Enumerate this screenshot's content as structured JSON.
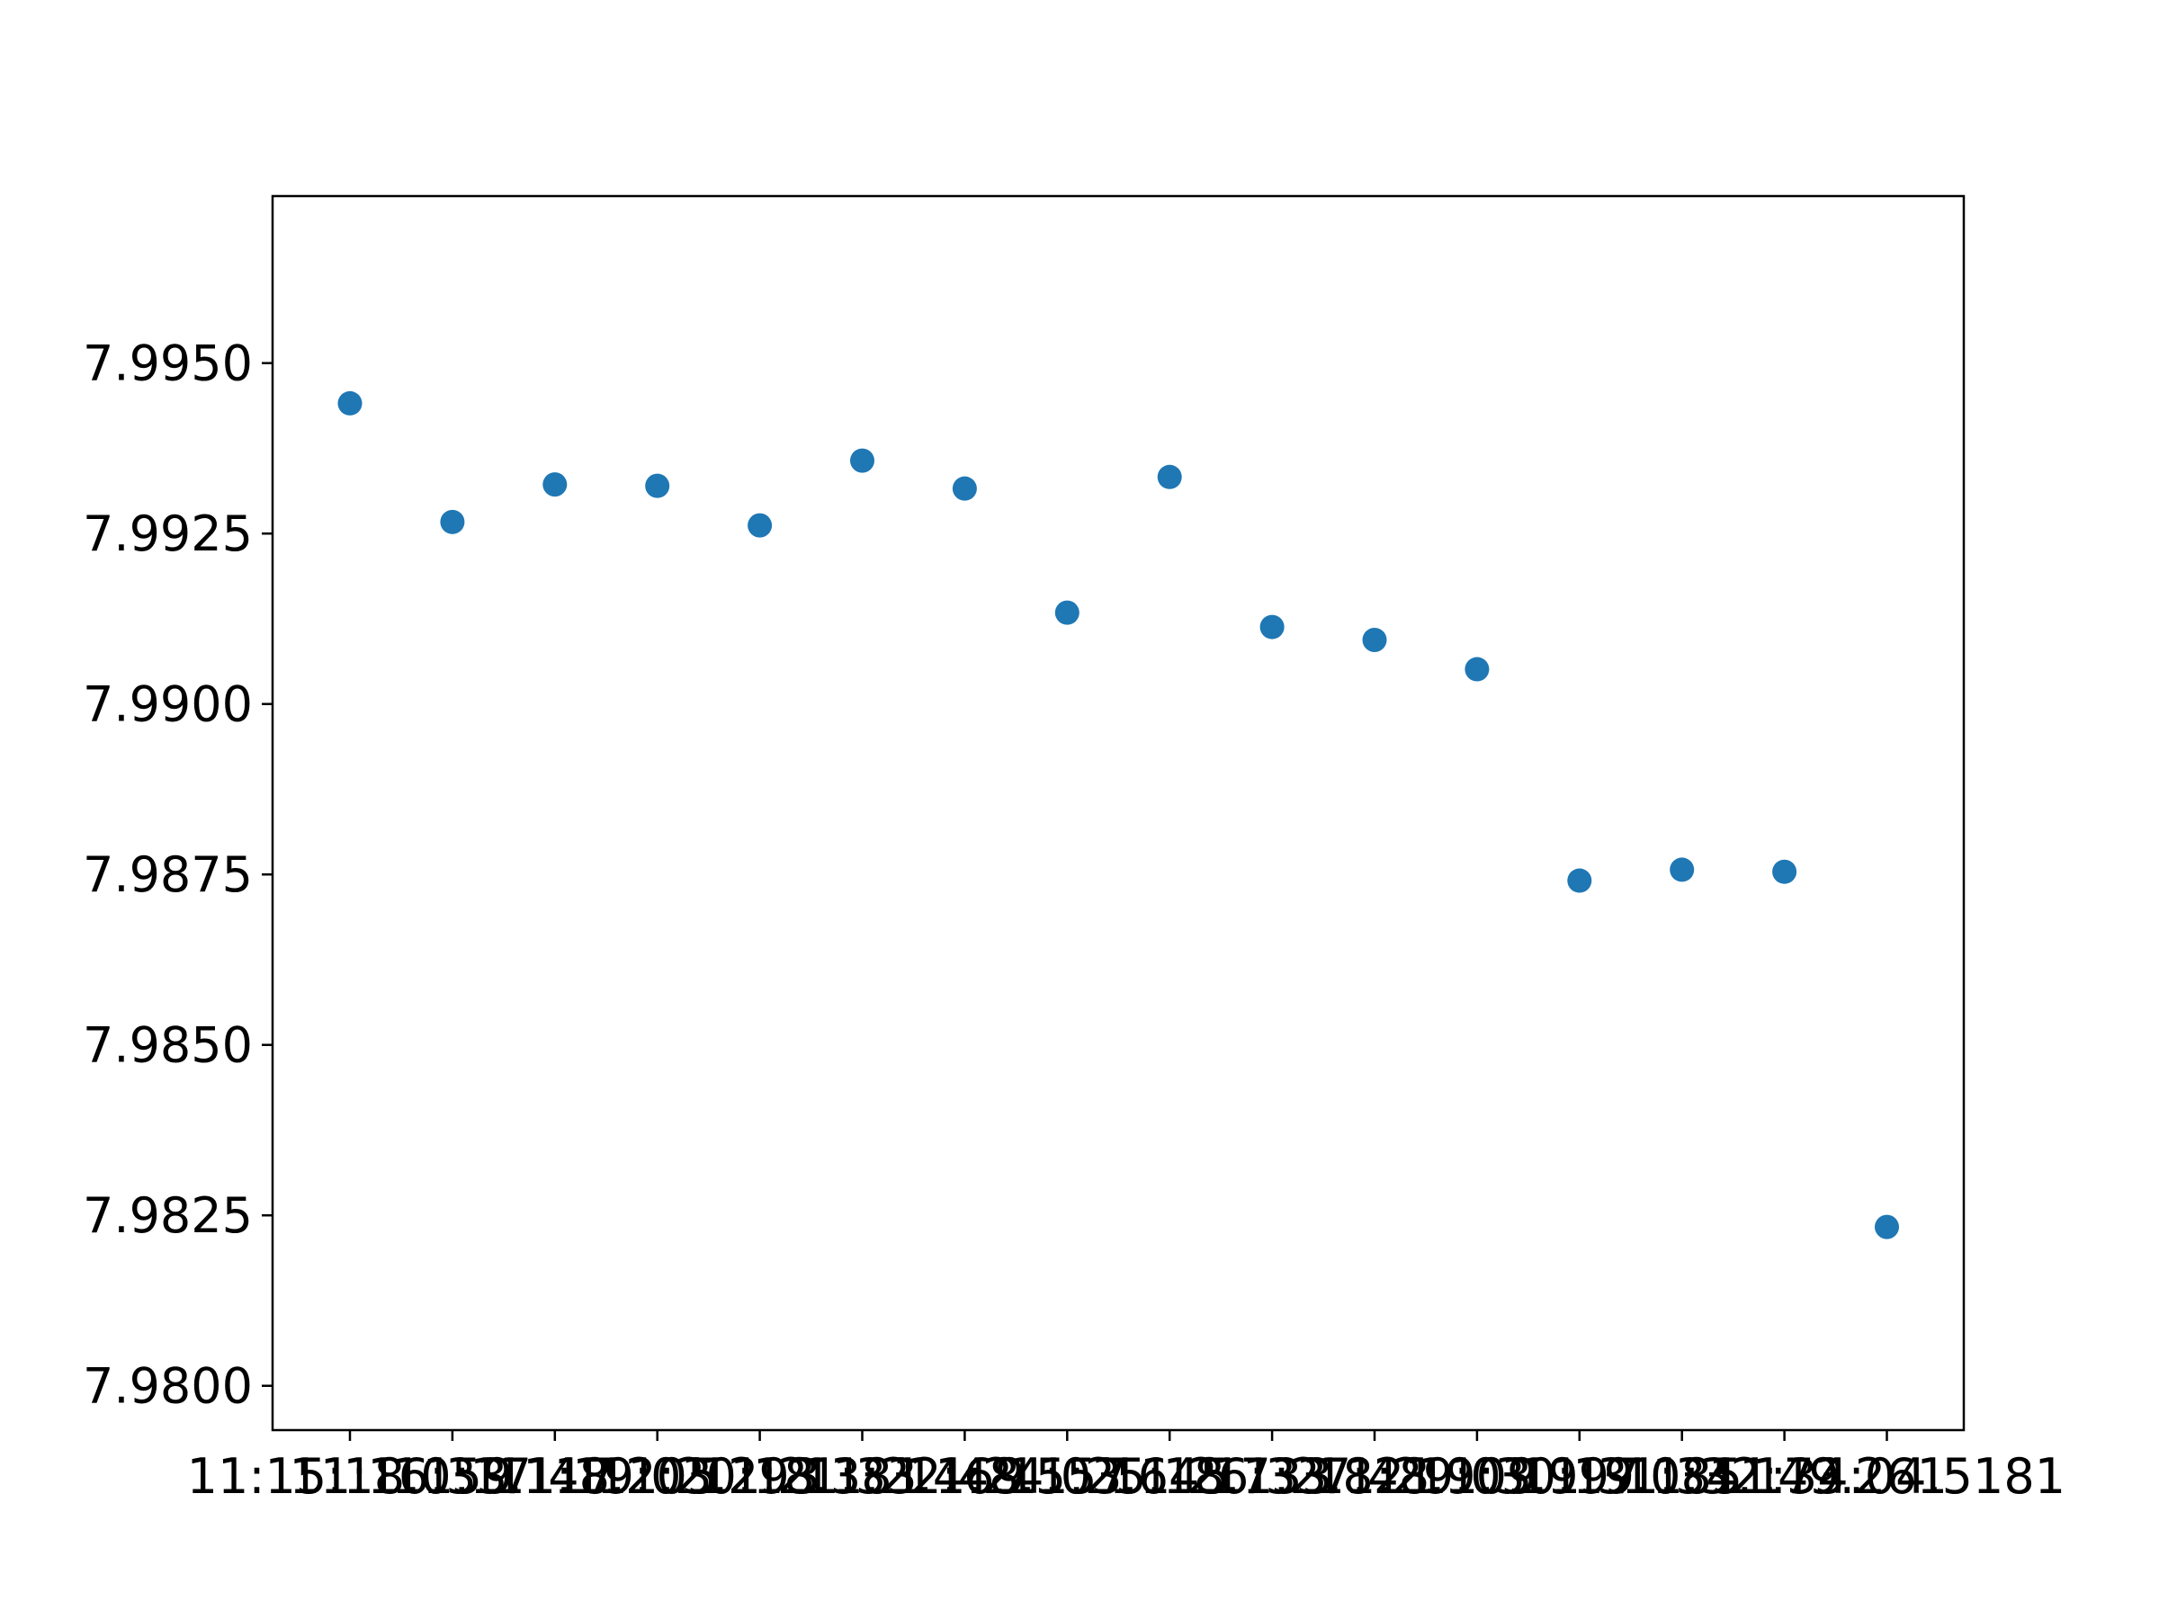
{
  "chart_data": {
    "type": "scatter",
    "title": "",
    "xlabel": "",
    "ylabel": "",
    "x": [
      "11:15:18.059",
      "11:16:33.117",
      "11:17:48.205",
      "11:19:03.293",
      "11:20:18.381",
      "11:21:33.469",
      "11:22:48.557",
      "11:24:03.645",
      "11:25:18.733",
      "11:26:33.821",
      "11:27:48.909",
      "11:29:03.997",
      "11:30:19.085",
      "11:31:34.173",
      "11:32:49.261",
      "11:34:04.5181"
    ],
    "series": [
      {
        "values": [
          7.99441,
          7.99267,
          7.99322,
          7.9932,
          7.99262,
          7.99357,
          7.99316,
          7.99134,
          7.99333,
          7.99113,
          7.99094,
          7.99051,
          7.98741,
          7.98757,
          7.98754,
          7.98233
        ],
        "color": "#1f77b4"
      }
    ],
    "ylim": [
      7.97935,
      7.99745
    ],
    "yticks": [
      "7.9800",
      "7.9825",
      "7.9850",
      "7.9875",
      "7.9900",
      "7.9925",
      "7.9950"
    ],
    "grid": false,
    "legend": "none"
  }
}
